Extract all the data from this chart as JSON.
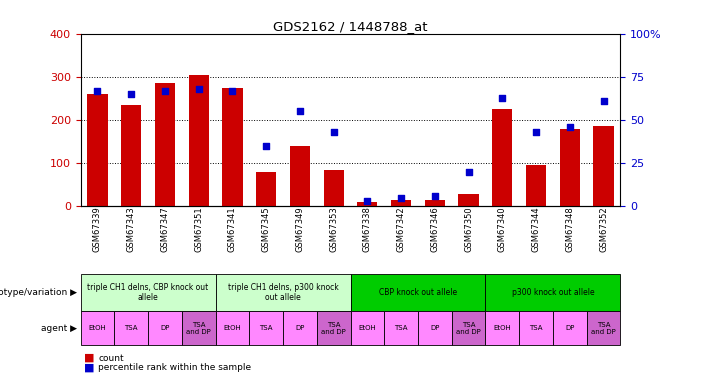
{
  "title": "GDS2162 / 1448788_at",
  "samples": [
    "GSM67339",
    "GSM67343",
    "GSM67347",
    "GSM67351",
    "GSM67341",
    "GSM67345",
    "GSM67349",
    "GSM67353",
    "GSM67338",
    "GSM67342",
    "GSM67346",
    "GSM67350",
    "GSM67340",
    "GSM67344",
    "GSM67348",
    "GSM67352"
  ],
  "counts": [
    260,
    235,
    285,
    305,
    275,
    80,
    140,
    85,
    10,
    15,
    15,
    28,
    225,
    95,
    180,
    185
  ],
  "percentiles": [
    67,
    65,
    67,
    68,
    67,
    35,
    55,
    43,
    3,
    5,
    6,
    20,
    63,
    43,
    46,
    61
  ],
  "bar_color": "#cc0000",
  "dot_color": "#0000cc",
  "ylim_left": [
    0,
    400
  ],
  "ylim_right": [
    0,
    100
  ],
  "yticks_left": [
    0,
    100,
    200,
    300,
    400
  ],
  "yticks_right": [
    0,
    25,
    50,
    75,
    100
  ],
  "genotype_groups": [
    {
      "label": "triple CH1 delns, CBP knock out\nallele",
      "start": 0,
      "end": 4,
      "color": "#ccffcc"
    },
    {
      "label": "triple CH1 delns, p300 knock\nout allele",
      "start": 4,
      "end": 8,
      "color": "#ccffcc"
    },
    {
      "label": "CBP knock out allele",
      "start": 8,
      "end": 12,
      "color": "#00cc00"
    },
    {
      "label": "p300 knock out allele",
      "start": 12,
      "end": 16,
      "color": "#00cc00"
    }
  ],
  "agent_labels": [
    "EtOH",
    "TSA",
    "DP",
    "TSA\nand DP",
    "EtOH",
    "TSA",
    "DP",
    "TSA\nand DP",
    "EtOH",
    "TSA",
    "DP",
    "TSA\nand DP",
    "EtOH",
    "TSA",
    "DP",
    "TSA\nand DP"
  ],
  "agent_colors": [
    "#ff88ff",
    "#ff88ff",
    "#ff88ff",
    "#cc66cc",
    "#ff88ff",
    "#ff88ff",
    "#ff88ff",
    "#cc66cc",
    "#ff88ff",
    "#ff88ff",
    "#ff88ff",
    "#cc66cc",
    "#ff88ff",
    "#ff88ff",
    "#ff88ff",
    "#cc66cc"
  ],
  "genotype_label": "genotype/variation",
  "agent_label": "agent",
  "legend_count_color": "#cc0000",
  "legend_percentile_color": "#0000cc",
  "tick_label_color_left": "#cc0000",
  "tick_label_color_right": "#0000cc"
}
